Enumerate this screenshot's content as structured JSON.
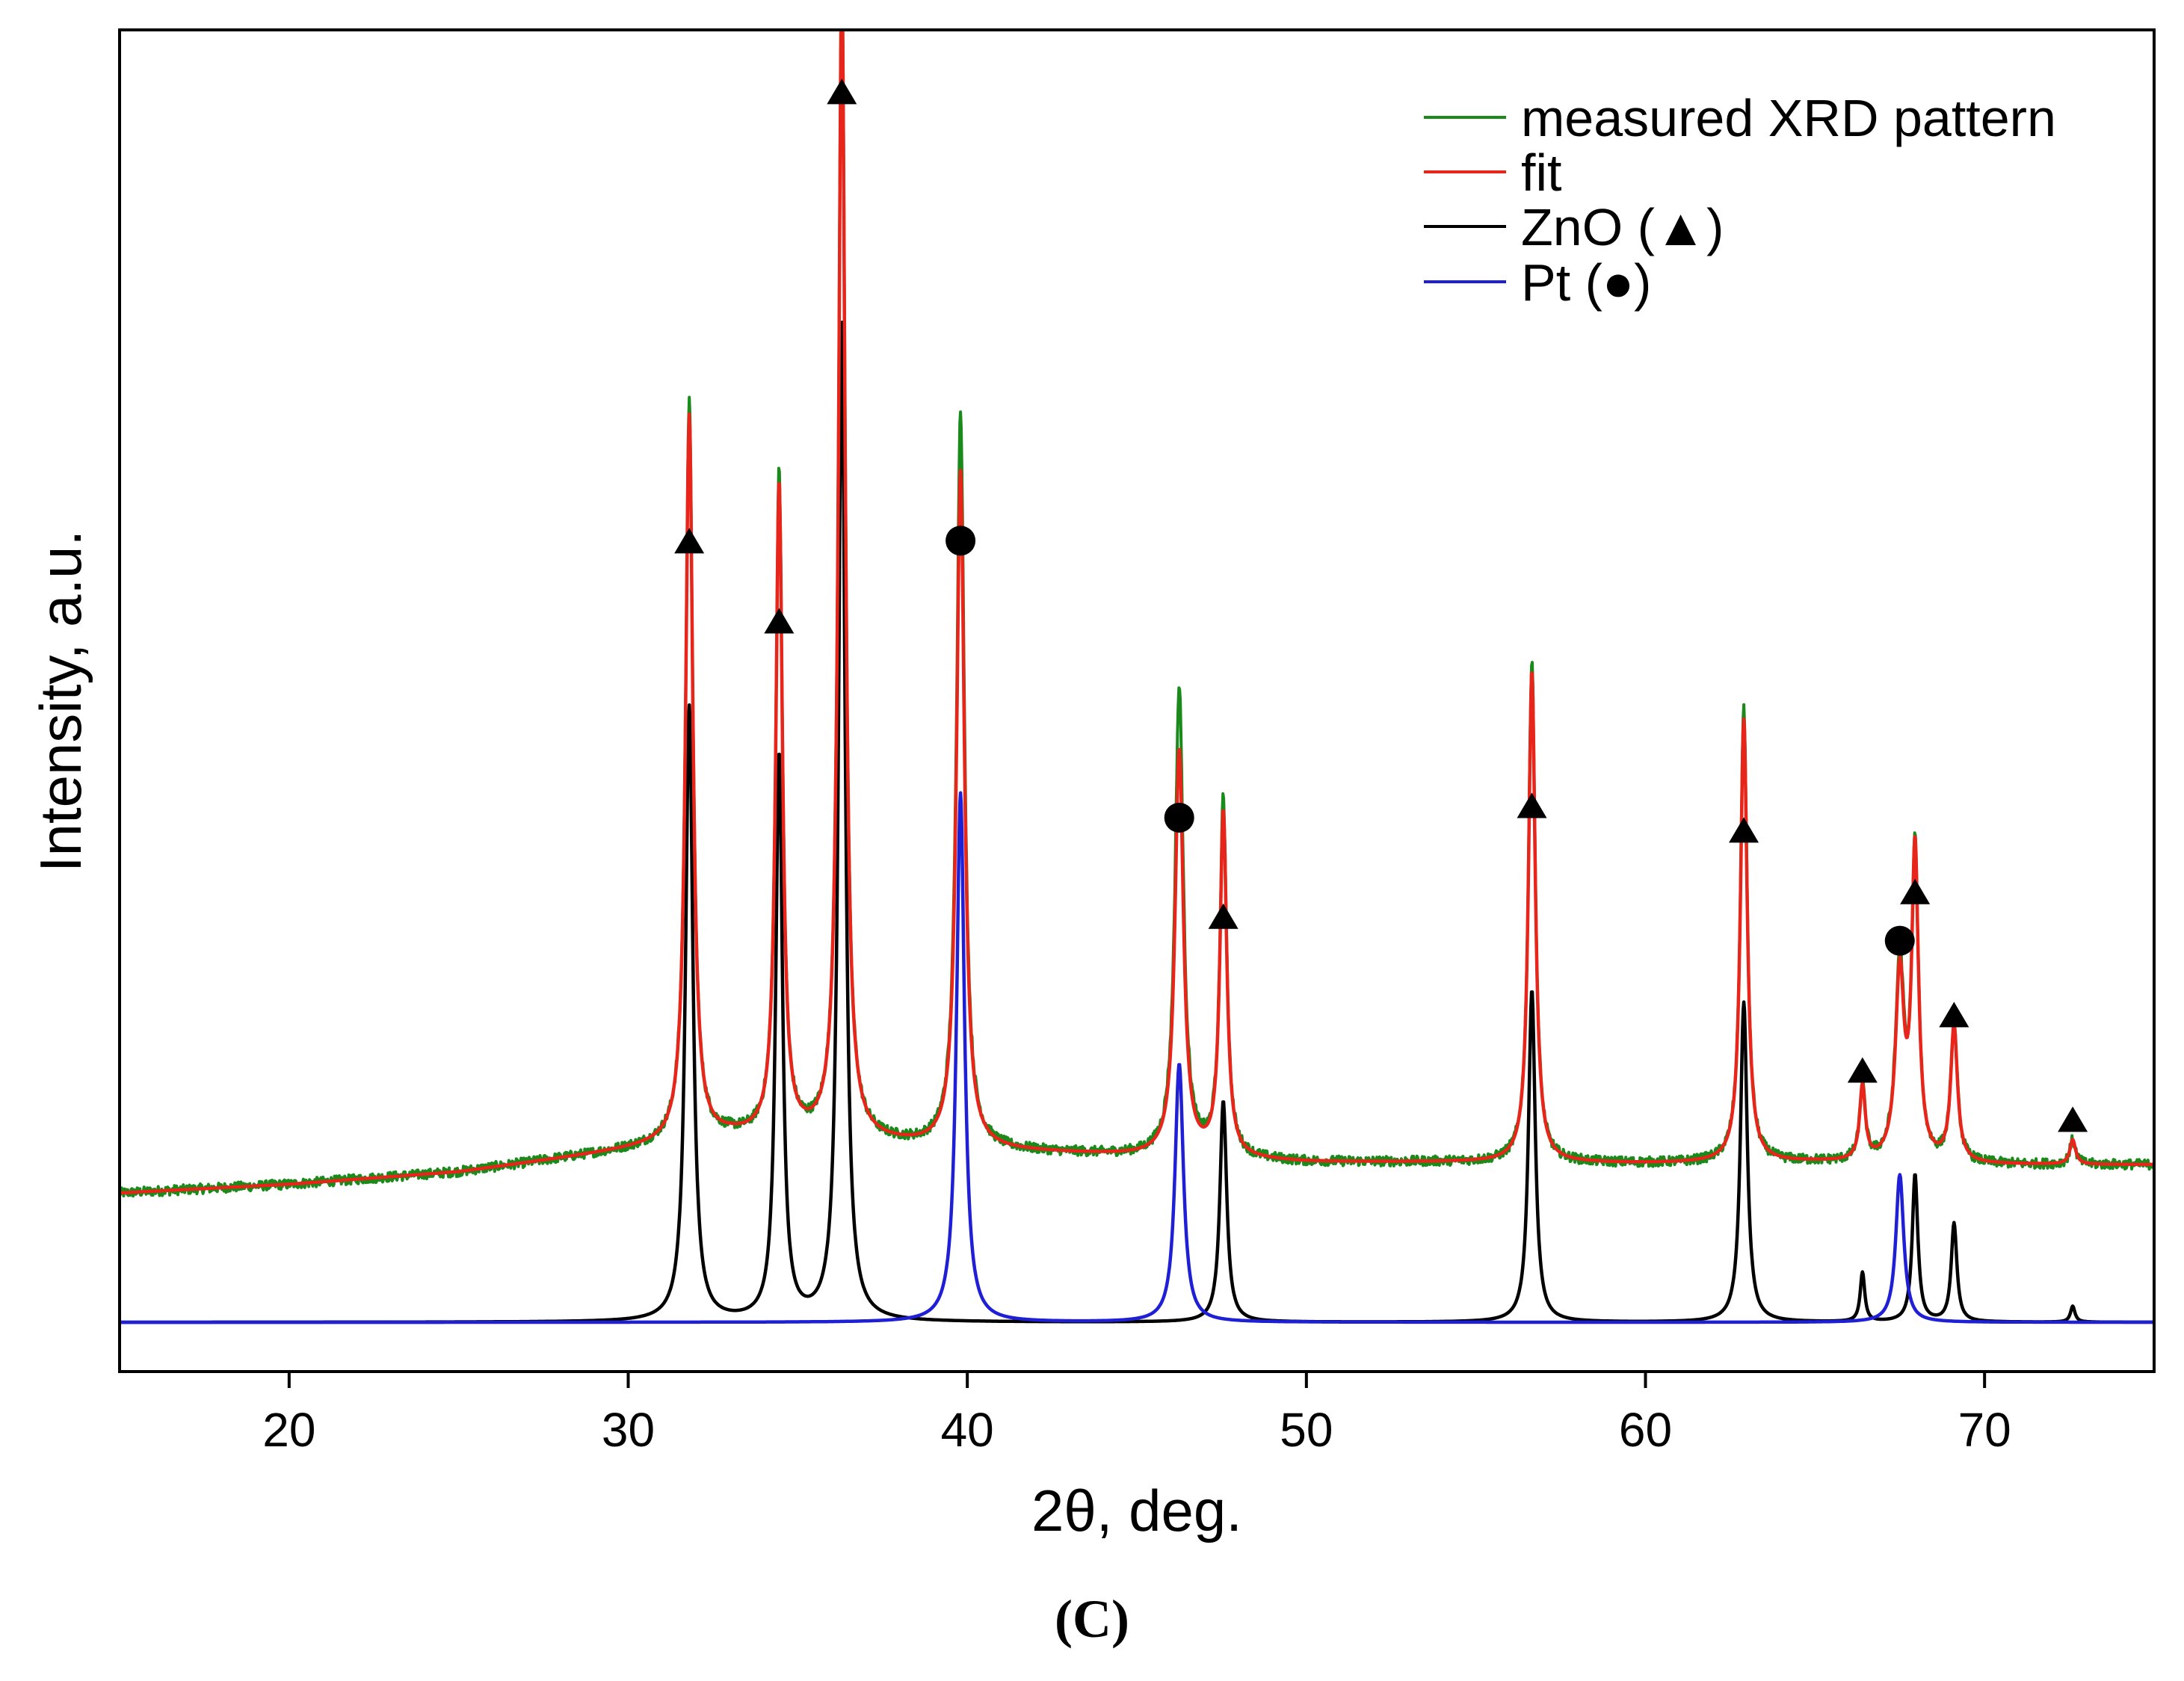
{
  "chart_data": {
    "type": "line",
    "title": "",
    "panel_label": "(C)",
    "xlabel": "2θ, deg.",
    "ylabel": "Intensity, a.u.",
    "xlim": [
      15,
      75
    ],
    "ylim": [
      -0.04,
      1.05
    ],
    "xticks": [
      20,
      30,
      40,
      50,
      60,
      70
    ],
    "yticks": [],
    "grid": false,
    "legend_position": "top-right",
    "legend": [
      {
        "label": "measured XRD pattern",
        "color": "#1a8a1a",
        "series": "measured"
      },
      {
        "label": "fit",
        "color": "#e8251b",
        "series": "fit"
      },
      {
        "label": "ZnO (▲)",
        "color": "#000000",
        "series": "zno"
      },
      {
        "label": "Pt (●)",
        "color": "#1f1fd6",
        "series": "pt"
      }
    ],
    "series": [
      {
        "name": "measured",
        "color": "#1a8a1a",
        "baseline": [
          [
            15,
            0.105
          ],
          [
            20,
            0.112
          ],
          [
            25,
            0.122
          ],
          [
            30,
            0.14
          ],
          [
            33,
            0.15
          ],
          [
            36,
            0.148
          ],
          [
            40,
            0.14
          ],
          [
            45,
            0.135
          ],
          [
            50,
            0.13
          ],
          [
            55,
            0.13
          ],
          [
            60,
            0.129
          ],
          [
            65,
            0.13
          ],
          [
            70,
            0.128
          ],
          [
            75,
            0.128
          ]
        ],
        "noise": 0.004,
        "peaks": [
          {
            "x": 31.8,
            "h": 0.6,
            "w": 0.13
          },
          {
            "x": 34.45,
            "h": 0.54,
            "w": 0.12
          },
          {
            "x": 36.3,
            "h": 0.96,
            "w": 0.12
          },
          {
            "x": 39.8,
            "h": 0.6,
            "w": 0.14
          },
          {
            "x": 46.25,
            "h": 0.38,
            "w": 0.15
          },
          {
            "x": 47.55,
            "h": 0.29,
            "w": 0.12
          },
          {
            "x": 56.65,
            "h": 0.41,
            "w": 0.12
          },
          {
            "x": 62.9,
            "h": 0.37,
            "w": 0.12
          },
          {
            "x": 66.4,
            "h": 0.06,
            "w": 0.1
          },
          {
            "x": 67.5,
            "h": 0.16,
            "w": 0.15
          },
          {
            "x": 67.95,
            "h": 0.25,
            "w": 0.12
          },
          {
            "x": 69.1,
            "h": 0.11,
            "w": 0.12
          },
          {
            "x": 72.6,
            "h": 0.02,
            "w": 0.1
          }
        ]
      },
      {
        "name": "fit",
        "color": "#e8251b",
        "baseline": [
          [
            15,
            0.105
          ],
          [
            20,
            0.112
          ],
          [
            25,
            0.122
          ],
          [
            30,
            0.14
          ],
          [
            33,
            0.15
          ],
          [
            36,
            0.148
          ],
          [
            40,
            0.14
          ],
          [
            45,
            0.135
          ],
          [
            50,
            0.13
          ],
          [
            55,
            0.13
          ],
          [
            60,
            0.129
          ],
          [
            65,
            0.13
          ],
          [
            70,
            0.128
          ],
          [
            75,
            0.128
          ]
        ],
        "noise": 0,
        "peaks": [
          {
            "x": 31.8,
            "h": 0.59,
            "w": 0.13
          },
          {
            "x": 34.45,
            "h": 0.53,
            "w": 0.12
          },
          {
            "x": 36.3,
            "h": 0.94,
            "w": 0.12
          },
          {
            "x": 39.8,
            "h": 0.55,
            "w": 0.14
          },
          {
            "x": 46.25,
            "h": 0.33,
            "w": 0.15
          },
          {
            "x": 47.55,
            "h": 0.28,
            "w": 0.12
          },
          {
            "x": 56.65,
            "h": 0.4,
            "w": 0.12
          },
          {
            "x": 62.9,
            "h": 0.36,
            "w": 0.12
          },
          {
            "x": 66.4,
            "h": 0.06,
            "w": 0.1
          },
          {
            "x": 67.5,
            "h": 0.15,
            "w": 0.15
          },
          {
            "x": 67.95,
            "h": 0.25,
            "w": 0.12
          },
          {
            "x": 69.1,
            "h": 0.11,
            "w": 0.12
          },
          {
            "x": 72.6,
            "h": 0.02,
            "w": 0.1
          }
        ]
      },
      {
        "name": "zno",
        "color": "#000000",
        "baseline": [
          [
            15,
            0
          ],
          [
            75,
            0
          ]
        ],
        "noise": 0,
        "peaks": [
          {
            "x": 31.8,
            "h": 0.5,
            "w": 0.13
          },
          {
            "x": 34.45,
            "h": 0.46,
            "w": 0.12
          },
          {
            "x": 36.3,
            "h": 0.81,
            "w": 0.12
          },
          {
            "x": 47.55,
            "h": 0.18,
            "w": 0.12
          },
          {
            "x": 56.65,
            "h": 0.27,
            "w": 0.12
          },
          {
            "x": 62.9,
            "h": 0.26,
            "w": 0.12
          },
          {
            "x": 66.4,
            "h": 0.04,
            "w": 0.08
          },
          {
            "x": 67.95,
            "h": 0.12,
            "w": 0.1
          },
          {
            "x": 69.1,
            "h": 0.08,
            "w": 0.1
          },
          {
            "x": 72.6,
            "h": 0.013,
            "w": 0.08
          }
        ]
      },
      {
        "name": "pt",
        "color": "#1f1fd6",
        "baseline": [
          [
            15,
            0
          ],
          [
            75,
            0
          ]
        ],
        "noise": 0,
        "peaks": [
          {
            "x": 39.8,
            "h": 0.43,
            "w": 0.14
          },
          {
            "x": 46.25,
            "h": 0.21,
            "w": 0.15
          },
          {
            "x": 67.5,
            "h": 0.12,
            "w": 0.14
          }
        ]
      }
    ],
    "markers": [
      {
        "symbol": "triangle",
        "phase": "ZnO",
        "x": 31.8,
        "y": 0.635
      },
      {
        "symbol": "triangle",
        "phase": "ZnO",
        "x": 34.45,
        "y": 0.57
      },
      {
        "symbol": "triangle",
        "phase": "ZnO",
        "x": 36.3,
        "y": 1.0
      },
      {
        "symbol": "circle",
        "phase": "Pt",
        "x": 39.8,
        "y": 0.635
      },
      {
        "symbol": "circle",
        "phase": "Pt",
        "x": 46.25,
        "y": 0.41
      },
      {
        "symbol": "triangle",
        "phase": "ZnO",
        "x": 47.55,
        "y": 0.33
      },
      {
        "symbol": "triangle",
        "phase": "ZnO",
        "x": 56.65,
        "y": 0.42
      },
      {
        "symbol": "triangle",
        "phase": "ZnO",
        "x": 62.9,
        "y": 0.4
      },
      {
        "symbol": "triangle",
        "phase": "ZnO",
        "x": 66.4,
        "y": 0.205
      },
      {
        "symbol": "circle",
        "phase": "Pt",
        "x": 67.5,
        "y": 0.31
      },
      {
        "symbol": "triangle",
        "phase": "ZnO",
        "x": 67.95,
        "y": 0.35
      },
      {
        "symbol": "triangle",
        "phase": "ZnO",
        "x": 69.1,
        "y": 0.25
      },
      {
        "symbol": "triangle",
        "phase": "ZnO",
        "x": 72.6,
        "y": 0.165
      }
    ]
  }
}
